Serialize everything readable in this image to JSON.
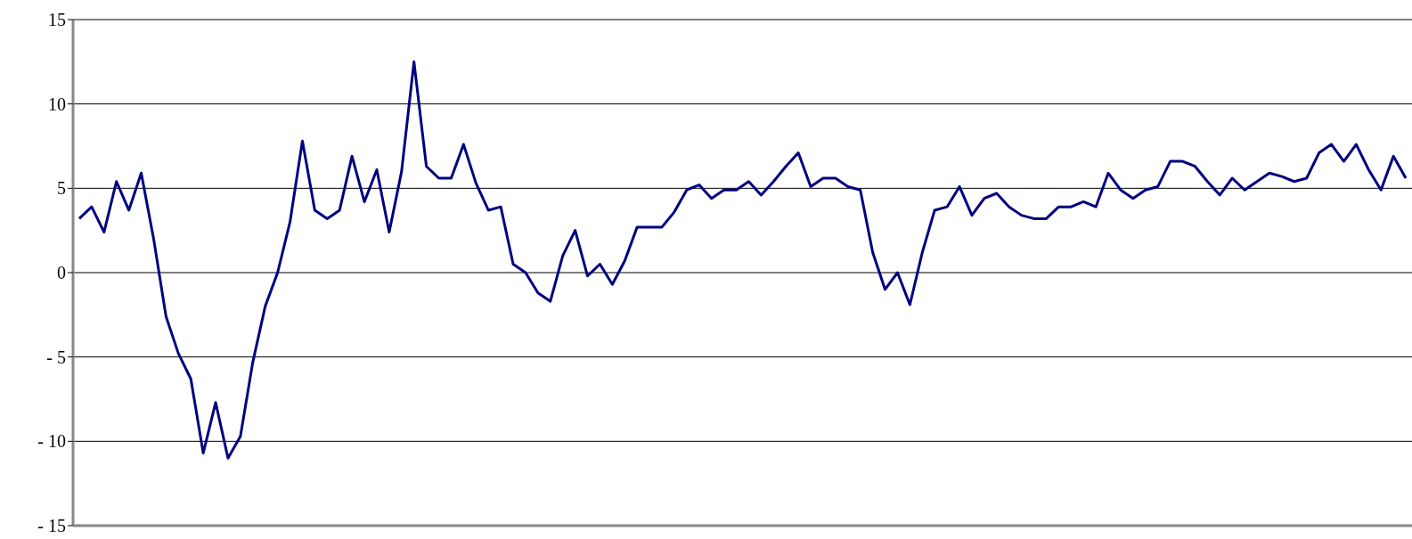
{
  "chart_data": {
    "type": "line",
    "categories": [
      null,
      null,
      null,
      null,
      null,
      null,
      null,
      null,
      null,
      null,
      null,
      null,
      null,
      null,
      null,
      null,
      null,
      null,
      null,
      null,
      null,
      null,
      null,
      null,
      null,
      null,
      null,
      null,
      null,
      null,
      null,
      null,
      null,
      null,
      null,
      null,
      null,
      null,
      null,
      null,
      null,
      null,
      null,
      null,
      null,
      null,
      null,
      null,
      null,
      null,
      null,
      null,
      null,
      null,
      null,
      null,
      null,
      null,
      null,
      null,
      null,
      null,
      null,
      null,
      null,
      null,
      null,
      null,
      null,
      null,
      null,
      null,
      null,
      null,
      null,
      null,
      null,
      null,
      null,
      null,
      null,
      null,
      null,
      null,
      null,
      null,
      null,
      null,
      null,
      null,
      null,
      null,
      null,
      null,
      null,
      null,
      null,
      null,
      null,
      null,
      null,
      null,
      null,
      null,
      null,
      null,
      null,
      null
    ],
    "series": [
      {
        "color": "#000080",
        "values": [
          3.2,
          3.9,
          2.4,
          5.4,
          3.7,
          5.9,
          2.0,
          -2.6,
          -4.8,
          -6.3,
          -10.7,
          -7.7,
          -11.0,
          -9.7,
          -5.3,
          -2.0,
          0.0,
          3.0,
          7.8,
          3.7,
          3.2,
          3.7,
          6.9,
          4.2,
          6.1,
          2.4,
          6.0,
          12.5,
          6.3,
          5.6,
          5.6,
          7.6,
          5.3,
          3.7,
          3.9,
          0.5,
          0.0,
          -1.2,
          -1.7,
          1.0,
          2.5,
          -0.2,
          0.5,
          -0.7,
          0.7,
          2.7,
          2.7,
          2.7,
          3.6,
          4.9,
          5.2,
          4.4,
          4.9,
          4.9,
          5.4,
          4.6,
          5.4,
          6.3,
          7.1,
          5.1,
          5.6,
          5.6,
          5.1,
          4.9,
          1.2,
          -1.0,
          0.0,
          -1.9,
          1.2,
          3.7,
          3.9,
          5.1,
          3.4,
          4.4,
          4.7,
          3.9,
          3.4,
          3.2,
          3.2,
          3.9,
          3.9,
          4.2,
          3.9,
          5.9,
          4.9,
          4.4,
          4.9,
          5.1,
          6.6,
          6.6,
          6.3,
          5.4,
          4.6,
          5.6,
          4.9,
          5.4,
          5.9,
          5.7,
          5.4,
          5.6,
          7.1,
          7.6,
          6.6,
          7.6,
          6.1,
          4.9,
          6.9,
          5.6
        ]
      }
    ],
    "ylim": [
      -15,
      15
    ],
    "yticks": [
      {
        "value": -15,
        "label": "- 15"
      },
      {
        "value": -10,
        "label": "- 10"
      },
      {
        "value": -5,
        "label": "- 5"
      },
      0,
      5,
      10,
      15
    ],
    "grid": "y",
    "line_style": "solid",
    "marker": "none"
  }
}
